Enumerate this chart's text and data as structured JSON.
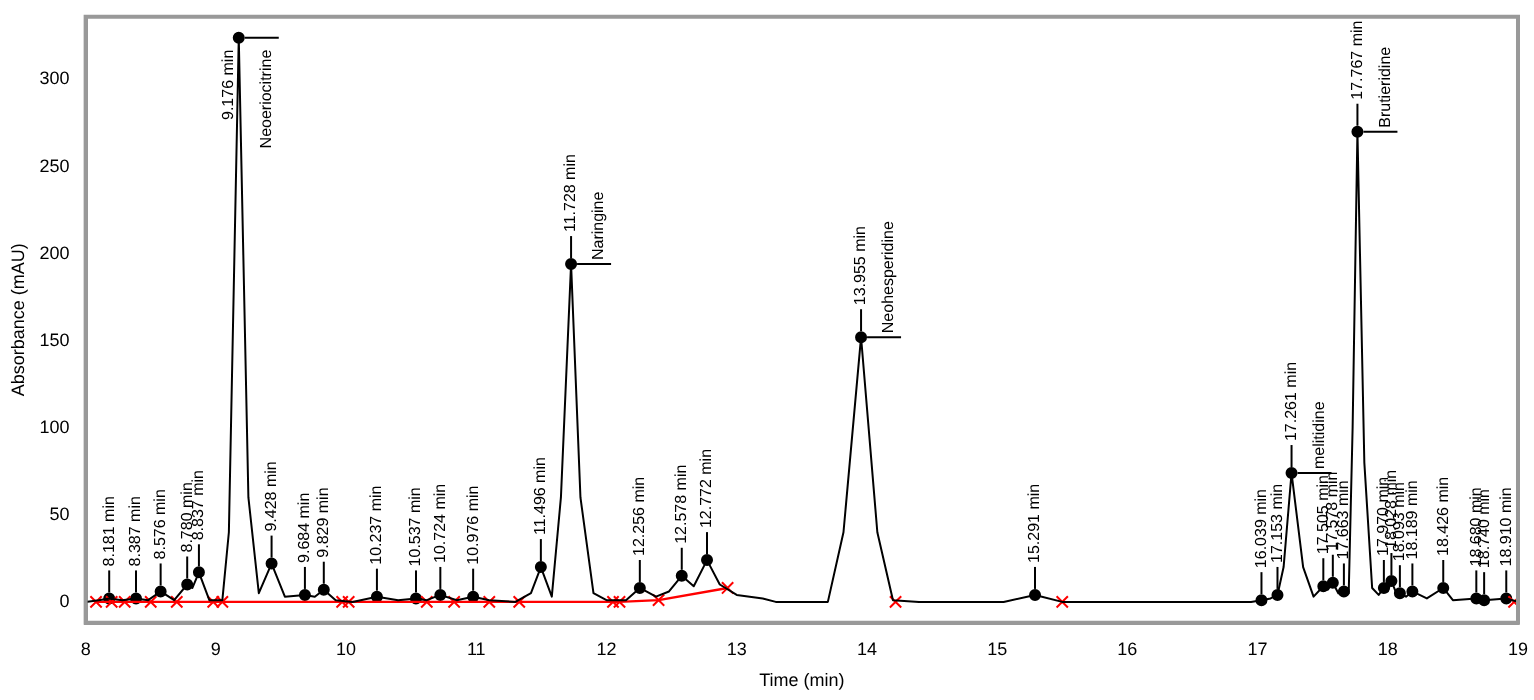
{
  "chart_data": {
    "type": "line",
    "xlabel": "Time (min)",
    "ylabel": "Absorbance (mAU)",
    "xlim": [
      8,
      19
    ],
    "xticks": [
      8,
      9,
      10,
      11,
      12,
      13,
      14,
      15,
      16,
      17,
      18,
      19
    ],
    "ylim": [
      -12,
      336
    ],
    "yticks": [
      0,
      50,
      100,
      150,
      200,
      250,
      300
    ],
    "grid": false,
    "legend": false,
    "series": [
      {
        "type": "line",
        "color": "#000000",
        "marker": "none",
        "x": [
          8.0,
          8.1,
          8.181,
          8.28,
          8.387,
          8.48,
          8.576,
          8.68,
          8.78,
          8.82,
          8.87,
          8.95,
          9.05,
          9.1,
          9.176,
          9.25,
          9.33,
          9.428,
          9.53,
          9.684,
          9.76,
          9.829,
          9.92,
          10.05,
          10.237,
          10.4,
          10.537,
          10.62,
          10.724,
          10.85,
          10.976,
          11.1,
          11.3,
          11.42,
          11.496,
          11.58,
          11.65,
          11.728,
          11.8,
          11.9,
          12.0,
          12.15,
          12.256,
          12.38,
          12.48,
          12.578,
          12.67,
          12.772,
          12.87,
          13.0,
          13.2,
          13.3,
          13.7,
          13.82,
          13.955,
          14.08,
          14.2,
          14.4,
          15.05,
          15.291,
          15.5,
          16.95,
          17.03,
          17.1,
          17.153,
          17.2,
          17.261,
          17.35,
          17.43,
          17.505,
          17.54,
          17.578,
          17.62,
          17.663,
          17.7,
          17.73,
          17.767,
          17.82,
          17.88,
          17.93,
          17.97,
          18.0,
          18.028,
          18.06,
          18.093,
          18.14,
          18.189,
          18.3,
          18.426,
          18.5,
          18.68,
          18.74,
          18.91,
          19.0
        ],
        "values": [
          0,
          1,
          2,
          1,
          2,
          1,
          6,
          1,
          10,
          8,
          17,
          1,
          1,
          40,
          324,
          60,
          5,
          22,
          3,
          4,
          3,
          7,
          1,
          0,
          3,
          1,
          2,
          1,
          4,
          1,
          3,
          1,
          0,
          5,
          20,
          3,
          60,
          194,
          60,
          5,
          1,
          1,
          8,
          3,
          6,
          15,
          9,
          24,
          10,
          4,
          2,
          0,
          0,
          40,
          152,
          40,
          1,
          0,
          0,
          4,
          0,
          0,
          1,
          2,
          4,
          20,
          74,
          20,
          3,
          9,
          7,
          11,
          5,
          6,
          5,
          100,
          270,
          80,
          8,
          4,
          8,
          6,
          12,
          6,
          5,
          3,
          6,
          2,
          8,
          1,
          2,
          1,
          2,
          0
        ]
      },
      {
        "type": "line",
        "color": "#ff0000",
        "marker": "cross",
        "x": [
          8.08,
          8.2,
          8.3,
          8.5,
          8.7,
          8.98,
          9.05,
          9.97,
          10.02,
          10.62,
          10.83,
          11.1,
          11.33,
          12.05,
          12.1,
          12.4,
          12.93,
          13.72,
          14.22,
          15.06,
          15.5,
          16.97,
          18.97
        ],
        "values": [
          0,
          0,
          0,
          0,
          0,
          0,
          0,
          0,
          0,
          0,
          0,
          0,
          0,
          0,
          0,
          1,
          8,
          null,
          0,
          null,
          0,
          null,
          0
        ]
      },
      {
        "type": "scatter",
        "color": "#000000",
        "marker": "circle",
        "x": [
          8.181,
          8.387,
          8.576,
          8.78,
          8.87,
          9.176,
          9.428,
          9.684,
          9.829,
          10.237,
          10.537,
          10.724,
          10.976,
          11.496,
          11.728,
          12.256,
          12.578,
          12.772,
          13.955,
          15.291,
          17.03,
          17.153,
          17.261,
          17.505,
          17.578,
          17.663,
          17.767,
          17.97,
          18.028,
          18.093,
          18.189,
          18.426,
          18.68,
          18.74,
          18.91
        ],
        "values": [
          2,
          2,
          6,
          10,
          17,
          324,
          22,
          4,
          7,
          3,
          2,
          4,
          3,
          20,
          194,
          8,
          15,
          24,
          152,
          4,
          1,
          4,
          74,
          9,
          11,
          6,
          270,
          8,
          12,
          5,
          6,
          8,
          2,
          1,
          2
        ]
      }
    ],
    "annotations": [
      {
        "text": "8.181 min",
        "x": 8.181,
        "y": 2
      },
      {
        "text": "8.387 min",
        "x": 8.387,
        "y": 2
      },
      {
        "text": "8.576 min",
        "x": 8.576,
        "y": 6
      },
      {
        "text": "8.780 min",
        "x": 8.78,
        "y": 10
      },
      {
        "text": "8.837 min",
        "x": 8.87,
        "y": 17
      },
      {
        "text": "9.176 min",
        "x": 9.176,
        "y": 324
      },
      {
        "text": "9.428 min",
        "x": 9.428,
        "y": 22
      },
      {
        "text": "9.684 min",
        "x": 9.684,
        "y": 4
      },
      {
        "text": "9.829 min",
        "x": 9.829,
        "y": 7
      },
      {
        "text": "10.237 min",
        "x": 10.237,
        "y": 3
      },
      {
        "text": "10.537 min",
        "x": 10.537,
        "y": 2
      },
      {
        "text": "10.724 min",
        "x": 10.724,
        "y": 4
      },
      {
        "text": "10.976 min",
        "x": 10.976,
        "y": 3
      },
      {
        "text": "11.496 min",
        "x": 11.496,
        "y": 20
      },
      {
        "text": "11.728 min",
        "x": 11.728,
        "y": 194
      },
      {
        "text": "12.256 min",
        "x": 12.256,
        "y": 8
      },
      {
        "text": "12.578 min",
        "x": 12.578,
        "y": 15
      },
      {
        "text": "12.772 min",
        "x": 12.772,
        "y": 24
      },
      {
        "text": "13.955 min",
        "x": 13.955,
        "y": 152
      },
      {
        "text": "15.291 min",
        "x": 15.291,
        "y": 4
      },
      {
        "text": "16.039 min",
        "x": 17.03,
        "y": 1
      },
      {
        "text": "17.153 min",
        "x": 17.153,
        "y": 4
      },
      {
        "text": "17.261 min",
        "x": 17.261,
        "y": 74
      },
      {
        "text": "17.505 min",
        "x": 17.505,
        "y": 9
      },
      {
        "text": "17.578 min",
        "x": 17.578,
        "y": 11
      },
      {
        "text": "17.663 min",
        "x": 17.663,
        "y": 6
      },
      {
        "text": "17.767 min",
        "x": 17.767,
        "y": 270
      },
      {
        "text": "17.970 min",
        "x": 17.97,
        "y": 8
      },
      {
        "text": "18.028 min",
        "x": 18.028,
        "y": 12
      },
      {
        "text": "18.093 min",
        "x": 18.093,
        "y": 5
      },
      {
        "text": "18.189 min",
        "x": 18.189,
        "y": 6
      },
      {
        "text": "18.426 min",
        "x": 18.426,
        "y": 8
      },
      {
        "text": "18.680 min",
        "x": 18.68,
        "y": 2
      },
      {
        "text": "18.740 min",
        "x": 18.74,
        "y": 1
      },
      {
        "text": "18.910 min",
        "x": 18.91,
        "y": 2
      },
      {
        "text": "Neoeriocitrine",
        "x": 9.176,
        "y": 324
      },
      {
        "text": "Naringine",
        "x": 11.728,
        "y": 194
      },
      {
        "text": "Neohesperidine",
        "x": 13.955,
        "y": 152
      },
      {
        "text": "melitidine",
        "x": 17.261,
        "y": 74
      },
      {
        "text": "Brutieridine",
        "x": 17.767,
        "y": 270
      }
    ]
  }
}
